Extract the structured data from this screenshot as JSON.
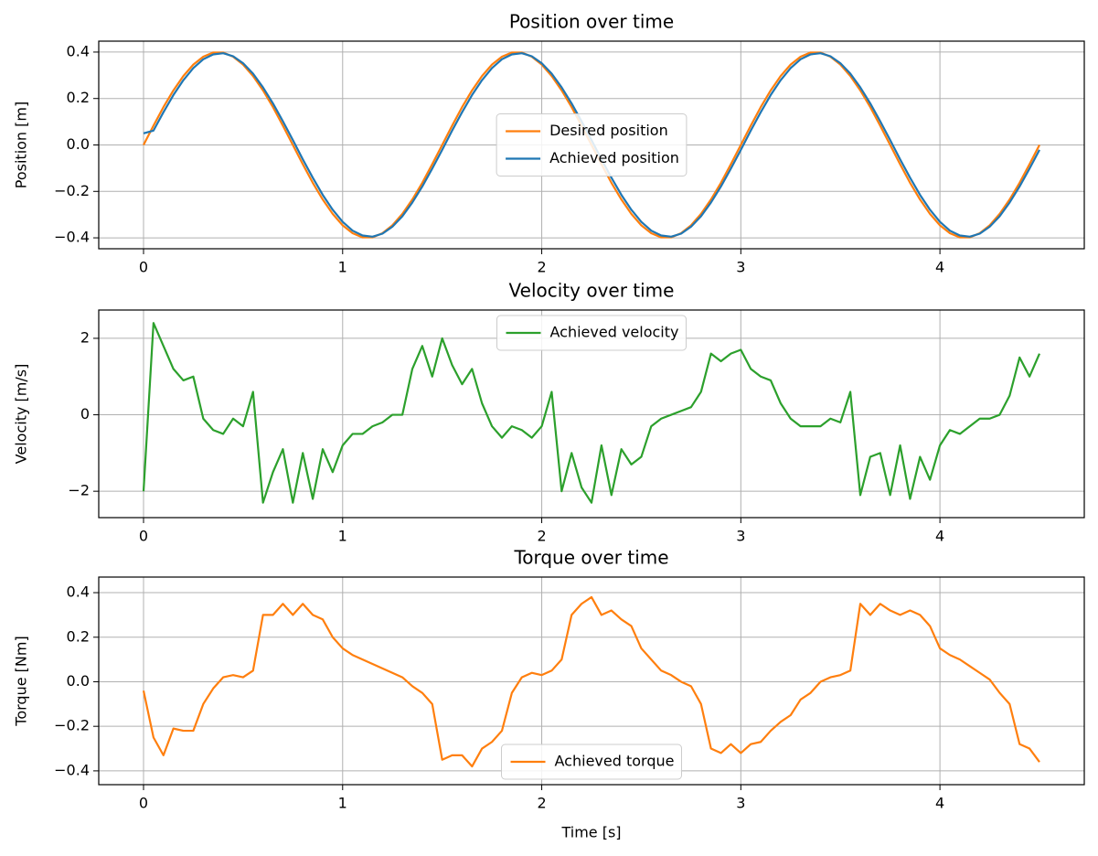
{
  "chart_data": [
    {
      "type": "line",
      "title": "Position over time",
      "y_label": "Position [m]",
      "x": [
        0,
        0.05,
        0.1,
        0.15,
        0.2,
        0.25,
        0.3,
        0.35,
        0.4,
        0.45,
        0.5,
        0.55,
        0.6,
        0.65,
        0.7,
        0.75,
        0.8,
        0.85,
        0.9,
        0.95,
        1,
        1.05,
        1.1,
        1.15,
        1.2,
        1.25,
        1.3,
        1.35,
        1.4,
        1.45,
        1.5,
        1.55,
        1.6,
        1.65,
        1.7,
        1.75,
        1.8,
        1.85,
        1.9,
        1.95,
        2,
        2.05,
        2.1,
        2.15,
        2.2,
        2.25,
        2.3,
        2.35,
        2.4,
        2.45,
        2.5,
        2.55,
        2.6,
        2.65,
        2.7,
        2.75,
        2.8,
        2.85,
        2.9,
        2.95,
        3,
        3.05,
        3.1,
        3.15,
        3.2,
        3.25,
        3.3,
        3.35,
        3.4,
        3.45,
        3.5,
        3.55,
        3.6,
        3.65,
        3.7,
        3.75,
        3.8,
        3.85,
        3.9,
        3.95,
        4,
        4.05,
        4.1,
        4.15,
        4.2,
        4.25,
        4.3,
        4.35,
        4.4,
        4.45,
        4.5
      ],
      "xlim": [
        -0.225,
        4.725
      ],
      "xticks": [
        0,
        1,
        2,
        3,
        4
      ],
      "ylim": [
        -0.447,
        0.447
      ],
      "yticks": [
        {
          "value": -0.4,
          "label": "−0.4"
        },
        {
          "value": -0.2,
          "label": "−0.2"
        },
        {
          "value": 0,
          "label": "0.0"
        },
        0.2,
        0.4
      ],
      "grid": true,
      "legend": "center",
      "series": [
        {
          "name": "Desired position",
          "color": "#ff7f0e",
          "values": [
            0,
            0.083,
            0.163,
            0.235,
            0.297,
            0.346,
            0.38,
            0.398,
            0.398,
            0.38,
            0.346,
            0.297,
            0.235,
            0.163,
            0.083,
            0,
            -0.083,
            -0.163,
            -0.235,
            -0.297,
            -0.346,
            -0.38,
            -0.398,
            -0.398,
            -0.38,
            -0.346,
            -0.297,
            -0.235,
            -0.163,
            -0.083,
            0,
            0.083,
            0.163,
            0.235,
            0.297,
            0.346,
            0.38,
            0.398,
            0.398,
            0.38,
            0.346,
            0.297,
            0.235,
            0.163,
            0.083,
            0,
            -0.083,
            -0.163,
            -0.235,
            -0.297,
            -0.346,
            -0.38,
            -0.398,
            -0.398,
            -0.38,
            -0.346,
            -0.297,
            -0.235,
            -0.163,
            -0.083,
            0,
            0.083,
            0.163,
            0.235,
            0.297,
            0.346,
            0.38,
            0.398,
            0.398,
            0.38,
            0.346,
            0.297,
            0.235,
            0.163,
            0.083,
            0,
            -0.083,
            -0.163,
            -0.235,
            -0.297,
            -0.346,
            -0.38,
            -0.398,
            -0.398,
            -0.38,
            -0.346,
            -0.297,
            -0.235,
            -0.163,
            -0.083,
            0
          ]
        },
        {
          "name": "Achieved position",
          "color": "#1f77b4",
          "values": [
            0.05,
            0.062,
            0.141,
            0.215,
            0.279,
            0.331,
            0.369,
            0.39,
            0.395,
            0.382,
            0.352,
            0.307,
            0.248,
            0.179,
            0.102,
            0.021,
            -0.062,
            -0.141,
            -0.215,
            -0.279,
            -0.331,
            -0.369,
            -0.39,
            -0.395,
            -0.382,
            -0.352,
            -0.307,
            -0.248,
            -0.179,
            -0.102,
            -0.021,
            0.062,
            0.141,
            0.215,
            0.279,
            0.331,
            0.369,
            0.39,
            0.395,
            0.382,
            0.352,
            0.307,
            0.248,
            0.179,
            0.102,
            0.021,
            -0.062,
            -0.141,
            -0.215,
            -0.279,
            -0.331,
            -0.369,
            -0.39,
            -0.395,
            -0.382,
            -0.352,
            -0.307,
            -0.248,
            -0.179,
            -0.102,
            -0.021,
            0.062,
            0.141,
            0.215,
            0.279,
            0.331,
            0.369,
            0.39,
            0.395,
            0.382,
            0.352,
            0.307,
            0.248,
            0.179,
            0.102,
            0.021,
            -0.062,
            -0.141,
            -0.215,
            -0.279,
            -0.331,
            -0.369,
            -0.39,
            -0.395,
            -0.382,
            -0.352,
            -0.307,
            -0.248,
            -0.179,
            -0.102,
            -0.021
          ]
        }
      ]
    },
    {
      "type": "line",
      "title": "Velocity over time",
      "y_label": "Velocity [m/s]",
      "x": [
        0,
        0.05,
        0.1,
        0.15,
        0.2,
        0.25,
        0.3,
        0.35,
        0.4,
        0.45,
        0.5,
        0.55,
        0.6,
        0.65,
        0.7,
        0.75,
        0.8,
        0.85,
        0.9,
        0.95,
        1,
        1.05,
        1.1,
        1.15,
        1.2,
        1.25,
        1.3,
        1.35,
        1.4,
        1.45,
        1.5,
        1.55,
        1.6,
        1.65,
        1.7,
        1.75,
        1.8,
        1.85,
        1.9,
        1.95,
        2,
        2.05,
        2.1,
        2.15,
        2.2,
        2.25,
        2.3,
        2.35,
        2.4,
        2.45,
        2.5,
        2.55,
        2.6,
        2.65,
        2.7,
        2.75,
        2.8,
        2.85,
        2.9,
        2.95,
        3,
        3.05,
        3.1,
        3.15,
        3.2,
        3.25,
        3.3,
        3.35,
        3.4,
        3.45,
        3.5,
        3.55,
        3.6,
        3.65,
        3.7,
        3.75,
        3.8,
        3.85,
        3.9,
        3.95,
        4,
        4.05,
        4.1,
        4.15,
        4.2,
        4.25,
        4.3,
        4.35,
        4.4,
        4.45,
        4.5
      ],
      "xlim": [
        -0.225,
        4.725
      ],
      "xticks": [
        0,
        1,
        2,
        3,
        4
      ],
      "ylim": [
        -2.69,
        2.74
      ],
      "yticks": [
        {
          "value": -2,
          "label": "−2"
        },
        0,
        2
      ],
      "grid": true,
      "legend": "upper center",
      "series": [
        {
          "name": "Achieved velocity",
          "color": "#2ca02c",
          "values": [
            -2.0,
            2.4,
            1.8,
            1.2,
            0.9,
            1.0,
            -0.1,
            -0.4,
            -0.5,
            -0.1,
            -0.3,
            0.6,
            -2.3,
            -1.5,
            -0.9,
            -2.3,
            -1.0,
            -2.2,
            -0.9,
            -1.5,
            -0.8,
            -0.5,
            -0.5,
            -0.3,
            -0.2,
            0.0,
            0.0,
            1.2,
            1.8,
            1.0,
            2.0,
            1.3,
            0.8,
            1.2,
            0.3,
            -0.3,
            -0.6,
            -0.3,
            -0.4,
            -0.6,
            -0.3,
            0.6,
            -2.0,
            -1.0,
            -1.9,
            -2.3,
            -0.8,
            -2.1,
            -0.9,
            -1.3,
            -1.1,
            -0.3,
            -0.1,
            0.0,
            0.1,
            0.2,
            0.6,
            1.6,
            1.4,
            1.6,
            1.7,
            1.2,
            1.0,
            0.9,
            0.3,
            -0.1,
            -0.3,
            -0.3,
            -0.3,
            -0.1,
            -0.2,
            0.6,
            -2.1,
            -1.1,
            -1.0,
            -2.1,
            -0.8,
            -2.2,
            -1.1,
            -1.7,
            -0.8,
            -0.4,
            -0.5,
            -0.3,
            -0.1,
            -0.1,
            0.0,
            0.5,
            1.5,
            1.0,
            1.6
          ]
        }
      ]
    },
    {
      "type": "line",
      "title": "Torque over time",
      "y_label": "Torque [Nm]",
      "x_label": "Time [s]",
      "x": [
        0,
        0.05,
        0.1,
        0.15,
        0.2,
        0.25,
        0.3,
        0.35,
        0.4,
        0.45,
        0.5,
        0.55,
        0.6,
        0.65,
        0.7,
        0.75,
        0.8,
        0.85,
        0.9,
        0.95,
        1,
        1.05,
        1.1,
        1.15,
        1.2,
        1.25,
        1.3,
        1.35,
        1.4,
        1.45,
        1.5,
        1.55,
        1.6,
        1.65,
        1.7,
        1.75,
        1.8,
        1.85,
        1.9,
        1.95,
        2,
        2.05,
        2.1,
        2.15,
        2.2,
        2.25,
        2.3,
        2.35,
        2.4,
        2.45,
        2.5,
        2.55,
        2.6,
        2.65,
        2.7,
        2.75,
        2.8,
        2.85,
        2.9,
        2.95,
        3,
        3.05,
        3.1,
        3.15,
        3.2,
        3.25,
        3.3,
        3.35,
        3.4,
        3.45,
        3.5,
        3.55,
        3.6,
        3.65,
        3.7,
        3.75,
        3.8,
        3.85,
        3.9,
        3.95,
        4,
        4.05,
        4.1,
        4.15,
        4.2,
        4.25,
        4.3,
        4.35,
        4.4,
        4.45,
        4.5
      ],
      "xlim": [
        -0.225,
        4.725
      ],
      "xticks": [
        0,
        1,
        2,
        3,
        4
      ],
      "ylim": [
        -0.462,
        0.47
      ],
      "yticks": [
        {
          "value": -0.4,
          "label": "−0.4"
        },
        {
          "value": -0.2,
          "label": "−0.2"
        },
        {
          "value": 0,
          "label": "0.0"
        },
        0.2,
        0.4
      ],
      "grid": true,
      "legend": "lower center",
      "series": [
        {
          "name": "Achieved torque",
          "color": "#ff7f0e",
          "values": [
            -0.04,
            -0.25,
            -0.33,
            -0.21,
            -0.22,
            -0.22,
            -0.1,
            -0.03,
            0.02,
            0.03,
            0.02,
            0.05,
            0.3,
            0.3,
            0.35,
            0.3,
            0.35,
            0.3,
            0.28,
            0.2,
            0.15,
            0.12,
            0.1,
            0.08,
            0.06,
            0.04,
            0.02,
            -0.02,
            -0.05,
            -0.1,
            -0.35,
            -0.33,
            -0.33,
            -0.38,
            -0.3,
            -0.27,
            -0.22,
            -0.05,
            0.02,
            0.04,
            0.03,
            0.05,
            0.1,
            0.3,
            0.35,
            0.38,
            0.3,
            0.32,
            0.28,
            0.25,
            0.15,
            0.1,
            0.05,
            0.03,
            0.0,
            -0.02,
            -0.1,
            -0.3,
            -0.32,
            -0.28,
            -0.32,
            -0.28,
            -0.27,
            -0.22,
            -0.18,
            -0.15,
            -0.08,
            -0.05,
            0.0,
            0.02,
            0.03,
            0.05,
            0.35,
            0.3,
            0.35,
            0.32,
            0.3,
            0.32,
            0.3,
            0.25,
            0.15,
            0.12,
            0.1,
            0.07,
            0.04,
            0.01,
            -0.05,
            -0.1,
            -0.28,
            -0.3,
            -0.36
          ]
        }
      ]
    }
  ]
}
